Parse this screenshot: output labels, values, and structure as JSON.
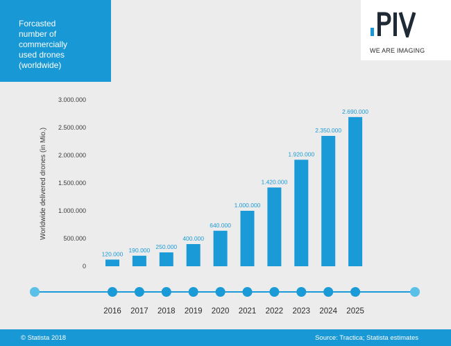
{
  "title": "Forcasted\nnumber of\ncommercially\nused drones\n(worldwide)",
  "logo": {
    "name": "PIV",
    "tagline": "WE ARE IMAGING"
  },
  "colors": {
    "accent": "#1898d5",
    "bar": "#1a9ad6",
    "timeline": "#1a9ad6",
    "timeline_end": "#5bc0e8"
  },
  "chart_data": {
    "type": "bar",
    "ylabel": "Worldwide delivered drones (in Mio.)",
    "xlabel": "",
    "ylim": [
      0,
      3000000
    ],
    "yticks": [
      "0",
      "500.000",
      "1.000.000",
      "1.500.000",
      "2.000.000",
      "2.500.000",
      "3.000.000"
    ],
    "ytick_values": [
      0,
      500000,
      1000000,
      1500000,
      2000000,
      2500000,
      3000000
    ],
    "grid": false,
    "categories": [
      "2016",
      "2017",
      "2018",
      "2019",
      "2020",
      "2021",
      "2022",
      "2023",
      "2024",
      "2025"
    ],
    "values": [
      120000,
      190000,
      250000,
      400000,
      640000,
      1000000,
      1420000,
      1920000,
      2350000,
      2690000
    ],
    "value_labels": [
      "120.000",
      "190.000",
      "250.000",
      "400.000",
      "640.000",
      "1.000.000",
      "1.420.000",
      "1.920.000",
      "2.350.000",
      "2.690.000"
    ]
  },
  "footer": {
    "copyright": "© Statista 2018",
    "source": "Source:  Tractica; Statista estimates"
  }
}
